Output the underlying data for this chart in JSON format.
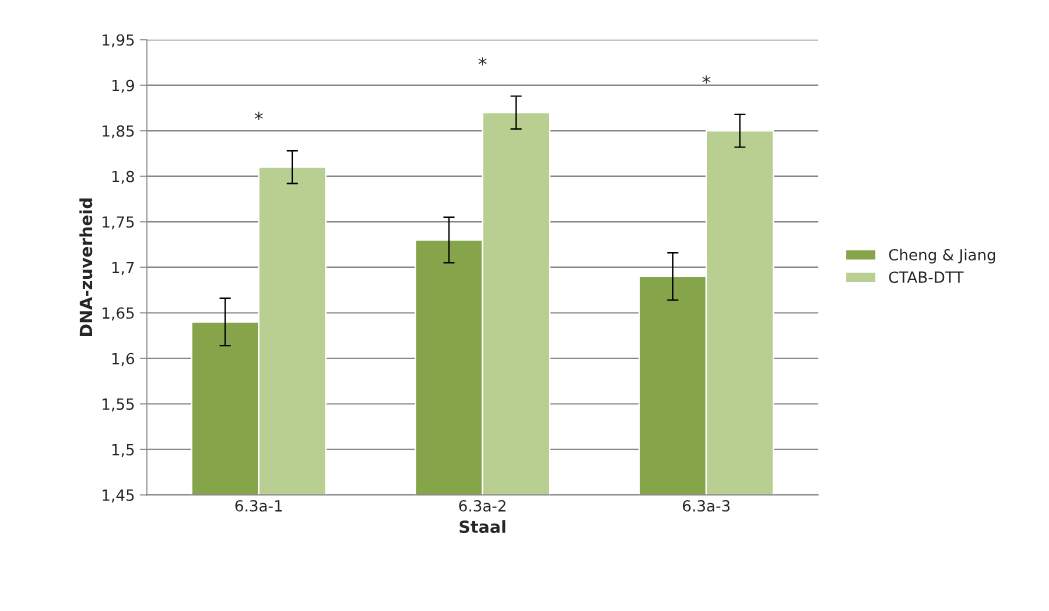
{
  "chart_data": {
    "type": "bar",
    "xlabel": "Staal",
    "ylabel": "DNA-zuverheid",
    "categories": [
      "6.3a-1",
      "6.3a-2",
      "6.3a-3"
    ],
    "series": [
      {
        "name": "Cheng & Jiang",
        "color": "#86a44a",
        "values": [
          1.64,
          1.73,
          1.69
        ],
        "errors": [
          0.026,
          0.025,
          0.026
        ]
      },
      {
        "name": "CTAB-DTT",
        "color": "#b9cf92",
        "values": [
          1.81,
          1.87,
          1.85
        ],
        "errors": [
          0.018,
          0.018,
          0.018
        ]
      }
    ],
    "ylim": [
      1.45,
      1.95
    ],
    "yticks": [
      {
        "value": 1.45,
        "label": "1,45"
      },
      {
        "value": 1.5,
        "label": "1,5"
      },
      {
        "value": 1.55,
        "label": "1,55"
      },
      {
        "value": 1.6,
        "label": "1,6"
      },
      {
        "value": 1.65,
        "label": "1,65"
      },
      {
        "value": 1.7,
        "label": "1,7"
      },
      {
        "value": 1.75,
        "label": "1,75"
      },
      {
        "value": 1.8,
        "label": "1,8"
      },
      {
        "value": 1.85,
        "label": "1,85"
      },
      {
        "value": 1.9,
        "label": "1,9"
      },
      {
        "value": 1.95,
        "label": "1,95"
      }
    ],
    "grid": "y",
    "legend": "right",
    "annotations": [
      "*",
      "*",
      "*"
    ]
  }
}
